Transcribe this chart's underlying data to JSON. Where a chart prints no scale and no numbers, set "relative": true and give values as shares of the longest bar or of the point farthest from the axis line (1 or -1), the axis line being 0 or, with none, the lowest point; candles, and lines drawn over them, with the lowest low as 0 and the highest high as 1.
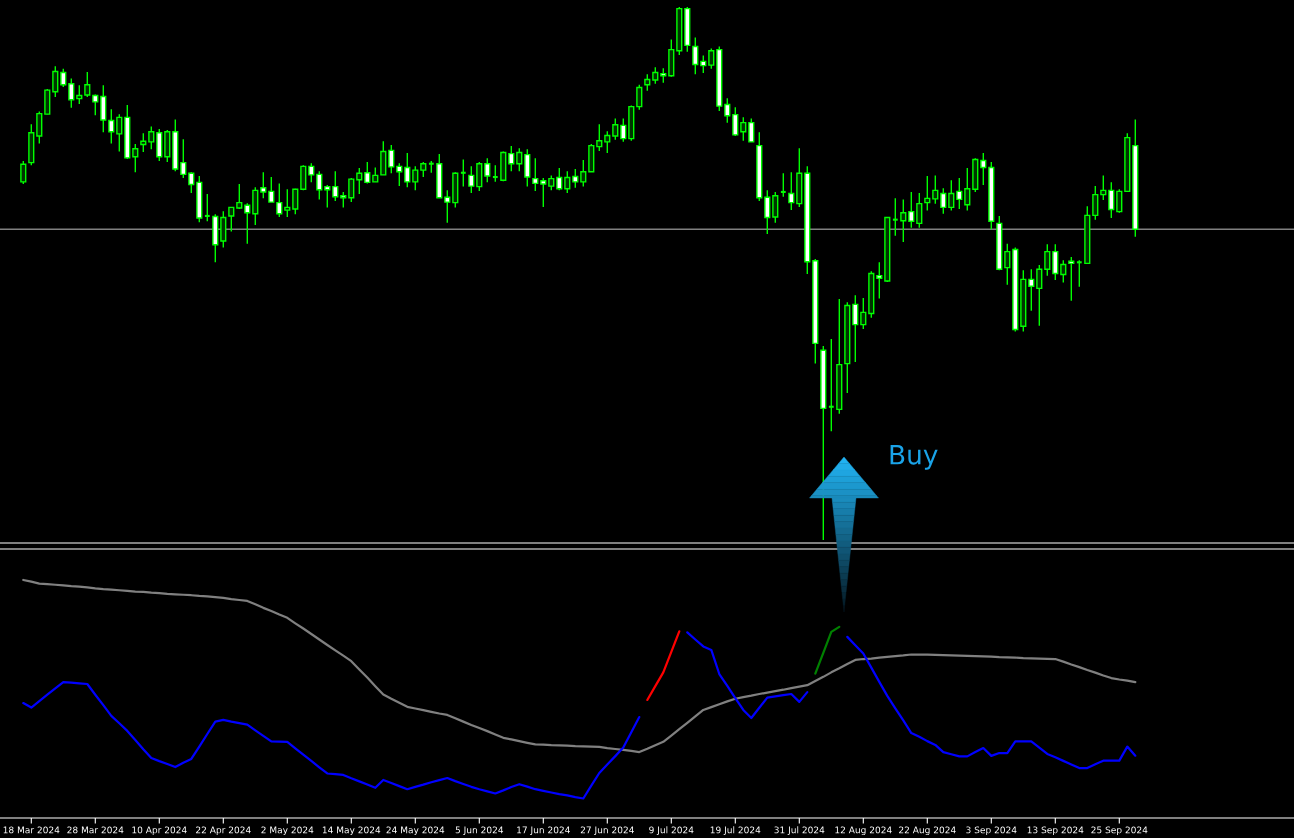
{
  "chart_data": [
    {
      "type": "candlestick",
      "relative": true,
      "color": "#00ff00",
      "categories": [
        null,
        null,
        null,
        null,
        null,
        null,
        null,
        null,
        null,
        null,
        null,
        null,
        null,
        null,
        null,
        null,
        null,
        null,
        null,
        null,
        null,
        null,
        null,
        null,
        null,
        null,
        null,
        null,
        null,
        null,
        null,
        null,
        null,
        null,
        null,
        null,
        null,
        null,
        null,
        null,
        null,
        null,
        null,
        null,
        null,
        null,
        null,
        null,
        null,
        null,
        null,
        null,
        null,
        null,
        null,
        null,
        null,
        null,
        null,
        null,
        null,
        null,
        null,
        null,
        null,
        null,
        null,
        null,
        null,
        null,
        null,
        null,
        null,
        null,
        null,
        null,
        null,
        null,
        null,
        null,
        null,
        null,
        null,
        null,
        null,
        null,
        null,
        null,
        null,
        null,
        null,
        null,
        null,
        null,
        null,
        null,
        null,
        null,
        null,
        null,
        null,
        null,
        null,
        null,
        null,
        null,
        null,
        null,
        null,
        null,
        null,
        null,
        null,
        null,
        null,
        null,
        null,
        null,
        null,
        null,
        null,
        null,
        null,
        null,
        null,
        null,
        null,
        null,
        null,
        null,
        null,
        null,
        null,
        null,
        null,
        null,
        null,
        null,
        null,
        null
      ],
      "ohlc": [
        [
          0.672,
          0.711,
          0.668,
          0.705
        ],
        [
          0.708,
          0.78,
          0.703,
          0.764
        ],
        [
          0.758,
          0.804,
          0.744,
          0.8
        ],
        [
          0.799,
          0.846,
          0.799,
          0.844
        ],
        [
          0.841,
          0.889,
          0.831,
          0.879
        ],
        [
          0.877,
          0.884,
          0.85,
          0.854
        ],
        [
          0.856,
          0.866,
          0.811,
          0.826
        ],
        [
          0.828,
          0.853,
          0.818,
          0.834
        ],
        [
          0.835,
          0.878,
          0.831,
          0.854
        ],
        [
          0.834,
          0.836,
          0.797,
          0.822
        ],
        [
          0.832,
          0.853,
          0.765,
          0.788
        ],
        [
          0.787,
          0.808,
          0.744,
          0.766
        ],
        [
          0.762,
          0.799,
          0.729,
          0.793
        ],
        [
          0.793,
          0.816,
          0.715,
          0.717
        ],
        [
          0.719,
          0.743,
          0.69,
          0.734
        ],
        [
          0.742,
          0.763,
          0.728,
          0.748
        ],
        [
          0.747,
          0.776,
          0.733,
          0.766
        ],
        [
          0.764,
          0.771,
          0.711,
          0.719
        ],
        [
          0.719,
          0.769,
          0.709,
          0.766
        ],
        [
          0.766,
          0.789,
          0.692,
          0.696
        ],
        [
          0.708,
          0.752,
          0.679,
          0.686
        ],
        [
          0.688,
          0.69,
          0.651,
          0.667
        ],
        [
          0.671,
          0.683,
          0.596,
          0.604
        ],
        [
          0.608,
          0.649,
          0.598,
          0.607
        ],
        [
          0.607,
          0.611,
          0.521,
          0.554
        ],
        [
          0.561,
          0.617,
          0.549,
          0.605
        ],
        [
          0.608,
          0.625,
          0.579,
          0.624
        ],
        [
          0.623,
          0.668,
          0.621,
          0.633
        ],
        [
          0.628,
          0.632,
          0.556,
          0.614
        ],
        [
          0.612,
          0.662,
          0.591,
          0.656
        ],
        [
          0.661,
          0.69,
          0.641,
          0.653
        ],
        [
          0.654,
          0.681,
          0.634,
          0.634
        ],
        [
          0.633,
          0.669,
          0.606,
          0.612
        ],
        [
          0.619,
          0.658,
          0.606,
          0.624
        ],
        [
          0.621,
          0.659,
          0.611,
          0.658
        ],
        [
          0.658,
          0.703,
          0.656,
          0.701
        ],
        [
          0.701,
          0.707,
          0.671,
          0.685
        ],
        [
          0.686,
          0.692,
          0.639,
          0.657
        ],
        [
          0.663,
          0.666,
          0.624,
          0.657
        ],
        [
          0.663,
          0.692,
          0.636,
          0.644
        ],
        [
          0.646,
          0.653,
          0.624,
          0.642
        ],
        [
          0.642,
          0.679,
          0.634,
          0.677
        ],
        [
          0.676,
          0.698,
          0.649,
          0.688
        ],
        [
          0.689,
          0.709,
          0.669,
          0.671
        ],
        [
          0.672,
          0.699,
          0.672,
          0.684
        ],
        [
          0.685,
          0.748,
          0.685,
          0.729
        ],
        [
          0.731,
          0.741,
          0.688,
          0.7
        ],
        [
          0.701,
          0.707,
          0.664,
          0.691
        ],
        [
          0.699,
          0.726,
          0.662,
          0.672
        ],
        [
          0.672,
          0.701,
          0.656,
          0.694
        ],
        [
          0.694,
          0.709,
          0.681,
          0.706
        ],
        [
          0.706,
          0.711,
          0.689,
          0.706
        ],
        [
          0.706,
          0.724,
          0.642,
          0.642
        ],
        [
          0.643,
          0.656,
          0.595,
          0.634
        ],
        [
          0.633,
          0.69,
          0.624,
          0.688
        ],
        [
          0.689,
          0.714,
          0.663,
          0.686
        ],
        [
          0.684,
          0.701,
          0.651,
          0.664
        ],
        [
          0.663,
          0.709,
          0.655,
          0.706
        ],
        [
          0.706,
          0.716,
          0.671,
          0.683
        ],
        [
          0.681,
          0.703,
          0.672,
          0.681
        ],
        [
          0.675,
          0.729,
          0.673,
          0.727
        ],
        [
          0.725,
          0.739,
          0.692,
          0.706
        ],
        [
          0.706,
          0.735,
          0.692,
          0.727
        ],
        [
          0.723,
          0.733,
          0.663,
          0.681
        ],
        [
          0.678,
          0.716,
          0.655,
          0.669
        ],
        [
          0.674,
          0.679,
          0.625,
          0.668
        ],
        [
          0.664,
          0.684,
          0.656,
          0.678
        ],
        [
          0.68,
          0.698,
          0.656,
          0.659
        ],
        [
          0.659,
          0.692,
          0.651,
          0.68
        ],
        [
          0.682,
          0.696,
          0.661,
          0.672
        ],
        [
          0.672,
          0.713,
          0.663,
          0.691
        ],
        [
          0.691,
          0.743,
          0.691,
          0.74
        ],
        [
          0.738,
          0.78,
          0.73,
          0.749
        ],
        [
          0.747,
          0.767,
          0.726,
          0.759
        ],
        [
          0.758,
          0.791,
          0.751,
          0.779
        ],
        [
          0.778,
          0.791,
          0.747,
          0.753
        ],
        [
          0.753,
          0.815,
          0.749,
          0.813
        ],
        [
          0.813,
          0.854,
          0.807,
          0.849
        ],
        [
          0.854,
          0.874,
          0.843,
          0.864
        ],
        [
          0.863,
          0.887,
          0.856,
          0.877
        ],
        [
          0.875,
          0.885,
          0.858,
          0.871
        ],
        [
          0.871,
          0.939,
          0.869,
          0.92
        ],
        [
          0.918,
          1.0,
          0.91,
          0.997
        ],
        [
          0.997,
          1.0,
          0.916,
          0.928
        ],
        [
          0.926,
          0.943,
          0.874,
          0.892
        ],
        [
          0.898,
          0.909,
          0.876,
          0.89
        ],
        [
          0.891,
          0.922,
          0.884,
          0.918
        ],
        [
          0.92,
          0.926,
          0.805,
          0.814
        ],
        [
          0.817,
          0.829,
          0.783,
          0.796
        ],
        [
          0.798,
          0.812,
          0.758,
          0.76
        ],
        [
          0.766,
          0.793,
          0.749,
          0.783
        ],
        [
          0.783,
          0.791,
          0.747,
          0.747
        ],
        [
          0.74,
          0.765,
          0.636,
          0.642
        ],
        [
          0.643,
          0.656,
          0.574,
          0.605
        ],
        [
          0.606,
          0.653,
          0.595,
          0.646
        ],
        [
          0.653,
          0.688,
          0.644,
          0.653
        ],
        [
          0.65,
          0.69,
          0.619,
          0.633
        ],
        [
          0.631,
          0.735,
          0.625,
          0.688
        ],
        [
          0.688,
          0.701,
          0.499,
          0.522
        ],
        [
          0.524,
          0.527,
          0.331,
          0.369
        ],
        [
          0.356,
          0.364,
          0,
          0.247
        ],
        [
          0.25,
          0.377,
          0.204,
          0.25
        ],
        [
          0.245,
          0.452,
          0.237,
          0.329
        ],
        [
          0.331,
          0.446,
          0.276,
          0.44
        ],
        [
          0.442,
          0.459,
          0.334,
          0.404
        ],
        [
          0.404,
          0.454,
          0.396,
          0.427
        ],
        [
          0.425,
          0.504,
          0.417,
          0.5
        ],
        [
          0.496,
          0.521,
          0.453,
          0.491
        ],
        [
          0.486,
          0.605,
          0.484,
          0.605
        ],
        [
          0.601,
          0.641,
          0.571,
          0.601
        ],
        [
          0.599,
          0.639,
          0.559,
          0.614
        ],
        [
          0.616,
          0.653,
          0.586,
          0.598
        ],
        [
          0.594,
          0.651,
          0.586,
          0.631
        ],
        [
          0.633,
          0.683,
          0.618,
          0.641
        ],
        [
          0.64,
          0.684,
          0.631,
          0.656
        ],
        [
          0.65,
          0.66,
          0.612,
          0.624
        ],
        [
          0.624,
          0.675,
          0.618,
          0.65
        ],
        [
          0.654,
          0.679,
          0.621,
          0.639
        ],
        [
          0.629,
          0.698,
          0.618,
          0.659
        ],
        [
          0.658,
          0.716,
          0.653,
          0.714
        ],
        [
          0.712,
          0.726,
          0.666,
          0.699
        ],
        [
          0.699,
          0.709,
          0.583,
          0.598
        ],
        [
          0.594,
          0.608,
          0.506,
          0.508
        ],
        [
          0.511,
          0.556,
          0.479,
          0.541
        ],
        [
          0.545,
          0.549,
          0.391,
          0.395
        ],
        [
          0.401,
          0.506,
          0.391,
          0.489
        ],
        [
          0.489,
          0.508,
          0.43,
          0.476
        ],
        [
          0.472,
          0.516,
          0.402,
          0.508
        ],
        [
          0.508,
          0.555,
          0.496,
          0.541
        ],
        [
          0.541,
          0.555,
          0.488,
          0.5
        ],
        [
          0.498,
          0.525,
          0.483,
          0.517
        ],
        [
          0.523,
          0.531,
          0.449,
          0.519
        ],
        [
          0.521,
          0.525,
          0.475,
          0.521
        ],
        [
          0.519,
          0.626,
          0.519,
          0.609
        ],
        [
          0.609,
          0.664,
          0.601,
          0.648
        ],
        [
          0.648,
          0.684,
          0.638,
          0.656
        ],
        [
          0.656,
          0.671,
          0.604,
          0.62
        ],
        [
          0.616,
          0.658,
          0.614,
          0.654
        ],
        [
          0.654,
          0.763,
          0.654,
          0.755
        ],
        [
          0.74,
          0.789,
          0.569,
          0.583
        ]
      ],
      "ref_lines": [
        {
          "axis": "y",
          "value": 0.583,
          "color": "#808080"
        }
      ],
      "annotations": [
        "Buy"
      ]
    },
    {
      "type": "line",
      "relative": true,
      "tick_labels": "x",
      "categories": [
        null,
        "18 Mar 2024",
        null,
        null,
        null,
        null,
        null,
        null,
        null,
        "28 Mar 2024",
        null,
        null,
        null,
        null,
        null,
        null,
        null,
        "10 Apr 2024",
        null,
        null,
        null,
        null,
        null,
        null,
        null,
        "22 Apr 2024",
        null,
        null,
        null,
        null,
        null,
        null,
        null,
        "2 May 2024",
        null,
        null,
        null,
        null,
        null,
        null,
        null,
        "14 May 2024",
        null,
        null,
        null,
        null,
        null,
        null,
        null,
        "24 May 2024",
        null,
        null,
        null,
        null,
        null,
        null,
        null,
        "5 Jun 2024",
        null,
        null,
        null,
        null,
        null,
        null,
        null,
        "17 Jun 2024",
        null,
        null,
        null,
        null,
        null,
        null,
        null,
        "27 Jun 2024",
        null,
        null,
        null,
        null,
        null,
        null,
        null,
        "9 Jul 2024",
        null,
        null,
        null,
        null,
        null,
        null,
        null,
        "19 Jul 2024",
        null,
        null,
        null,
        null,
        null,
        null,
        null,
        "31 Jul 2024",
        null,
        null,
        null,
        null,
        null,
        null,
        null,
        "12 Aug 2024",
        null,
        null,
        null,
        null,
        null,
        null,
        null,
        "22 Aug 2024",
        null,
        null,
        null,
        null,
        null,
        null,
        null,
        "3 Sep 2024",
        null,
        null,
        null,
        null,
        null,
        null,
        null,
        "13 Sep 2024",
        null,
        null,
        null,
        null,
        null,
        null,
        null,
        "25 Sep 2024",
        null,
        null
      ],
      "series": [
        {
          "color": "#808080",
          "values": [
            1.0,
            0.993,
            0.985,
            0.983,
            0.98,
            0.977,
            0.974,
            0.972,
            0.969,
            0.965,
            0.962,
            0.96,
            0.957,
            0.954,
            0.951,
            0.95,
            0.947,
            0.945,
            0.942,
            0.94,
            0.938,
            0.936,
            0.933,
            0.931,
            0.928,
            0.925,
            0.92,
            0.916,
            0.912,
            0.898,
            0.883,
            0.87,
            0.855,
            0.841,
            0.818,
            0.796,
            0.773,
            0.75,
            0.727,
            0.704,
            0.682,
            0.659,
            0.624,
            0.59,
            0.554,
            0.519,
            0.501,
            0.484,
            0.467,
            0.46,
            0.453,
            0.446,
            0.439,
            0.433,
            0.419,
            0.405,
            0.391,
            0.378,
            0.365,
            0.351,
            0.337,
            0.33,
            0.323,
            0.316,
            0.309,
            0.308,
            0.306,
            0.305,
            0.304,
            0.302,
            0.301,
            0.3,
            0.299,
            0.294,
            0.29,
            0.286,
            0.282,
            0.277,
            0.291,
            0.306,
            0.32,
            0.346,
            0.373,
            0.4,
            0.427,
            0.454,
            0.466,
            0.478,
            0.49,
            0.501,
            0.508,
            0.514,
            0.521,
            0.527,
            0.533,
            0.539,
            0.546,
            0.552,
            0.558,
            0.576,
            0.593,
            0.612,
            0.629,
            0.647,
            0.664,
            0.668,
            0.67,
            0.674,
            0.677,
            0.68,
            0.683,
            0.687,
            0.686,
            0.686,
            0.685,
            0.684,
            0.683,
            0.682,
            0.681,
            0.68,
            0.679,
            0.678,
            0.676,
            0.675,
            0.674,
            0.672,
            0.671,
            0.67,
            0.669,
            0.668,
            0.657,
            0.645,
            0.634,
            0.622,
            0.611,
            0.599,
            0.588,
            0.582,
            0.577,
            0.571
          ]
        },
        {
          "color": "#0000ff",
          "values": [
            0.483,
            0.464,
            0.491,
            0.518,
            0.545,
            0.571,
            0.569,
            0.566,
            0.563,
            0.518,
            0.474,
            0.429,
            0.398,
            0.366,
            0.328,
            0.289,
            0.252,
            0.239,
            0.227,
            0.214,
            0.232,
            0.248,
            0.3,
            0.353,
            0.405,
            0.412,
            0.405,
            0.399,
            0.392,
            0.368,
            0.345,
            0.322,
            0.321,
            0.32,
            0.293,
            0.266,
            0.24,
            0.213,
            0.187,
            0.184,
            0.181,
            0.167,
            0.154,
            0.141,
            0.127,
            0.16,
            0.147,
            0.134,
            0.121,
            0.131,
            0.14,
            0.15,
            0.159,
            0.168,
            0.155,
            0.143,
            0.131,
            0.121,
            0.112,
            0.103,
            0.116,
            0.13,
            0.142,
            0.132,
            0.121,
            0.114,
            0.107,
            0.1,
            0.095,
            0.088,
            0.082,
            0.136,
            0.189,
            0.225,
            0.26,
            0.296,
            0.36,
            0.424,
            null,
            null,
            null,
            null,
            null,
            0.78,
            0.75,
            0.721,
            0.706,
            0.605,
            0.555,
            0.504,
            0.454,
            0.42,
            0.463,
            0.506,
            0.511,
            0.516,
            0.521,
            0.488,
            0.529,
            null,
            null,
            null,
            null,
            0.761,
            0.726,
            0.691,
            0.632,
            0.572,
            0.513,
            0.461,
            0.41,
            0.357,
            0.341,
            0.323,
            0.307,
            0.277,
            0.268,
            0.259,
            0.259,
            0.277,
            0.294,
            0.261,
            0.273,
            0.273,
            0.322,
            0.322,
            0.322,
            0.296,
            0.269,
            0.255,
            0.24,
            0.225,
            0.21,
            0.21,
            0.226,
            0.241,
            0.241,
            0.241,
            0.3,
            0.262
          ]
        },
        {
          "color": "#ff0000",
          "values": [
            null,
            null,
            null,
            null,
            null,
            null,
            null,
            null,
            null,
            null,
            null,
            null,
            null,
            null,
            null,
            null,
            null,
            null,
            null,
            null,
            null,
            null,
            null,
            null,
            null,
            null,
            null,
            null,
            null,
            null,
            null,
            null,
            null,
            null,
            null,
            null,
            null,
            null,
            null,
            null,
            null,
            null,
            null,
            null,
            null,
            null,
            null,
            null,
            null,
            null,
            null,
            null,
            null,
            null,
            null,
            null,
            null,
            null,
            null,
            null,
            null,
            null,
            null,
            null,
            null,
            null,
            null,
            null,
            null,
            null,
            null,
            null,
            null,
            null,
            null,
            null,
            null,
            null,
            0.496,
            0.554,
            0.612,
            0.698,
            0.784,
            null,
            null,
            null,
            null,
            null,
            null,
            null,
            null,
            null,
            null,
            null,
            null,
            null,
            null,
            null,
            null,
            null,
            null,
            null,
            null,
            null,
            null,
            null,
            null,
            null,
            null,
            null,
            null,
            null,
            null,
            null,
            null,
            null,
            null,
            null,
            null,
            null,
            null,
            null,
            null,
            null,
            null,
            null,
            null,
            null,
            null,
            null,
            null,
            null,
            null,
            null,
            null,
            null,
            null,
            null,
            null,
            null
          ]
        },
        {
          "color": "#008000",
          "values": [
            null,
            null,
            null,
            null,
            null,
            null,
            null,
            null,
            null,
            null,
            null,
            null,
            null,
            null,
            null,
            null,
            null,
            null,
            null,
            null,
            null,
            null,
            null,
            null,
            null,
            null,
            null,
            null,
            null,
            null,
            null,
            null,
            null,
            null,
            null,
            null,
            null,
            null,
            null,
            null,
            null,
            null,
            null,
            null,
            null,
            null,
            null,
            null,
            null,
            null,
            null,
            null,
            null,
            null,
            null,
            null,
            null,
            null,
            null,
            null,
            null,
            null,
            null,
            null,
            null,
            null,
            null,
            null,
            null,
            null,
            null,
            null,
            null,
            null,
            null,
            null,
            null,
            null,
            null,
            null,
            null,
            null,
            null,
            null,
            null,
            null,
            null,
            null,
            null,
            null,
            null,
            null,
            null,
            null,
            null,
            null,
            null,
            null,
            null,
            0.607,
            0.694,
            0.782,
            0.803,
            null,
            null,
            null,
            null,
            null,
            null,
            null,
            null,
            null,
            null,
            null,
            null,
            null,
            null,
            null,
            null,
            null,
            null,
            null,
            null,
            null,
            null,
            null,
            null,
            null,
            null,
            null,
            null,
            null,
            null,
            null,
            null,
            null,
            null,
            null,
            null,
            null
          ]
        }
      ]
    }
  ]
}
